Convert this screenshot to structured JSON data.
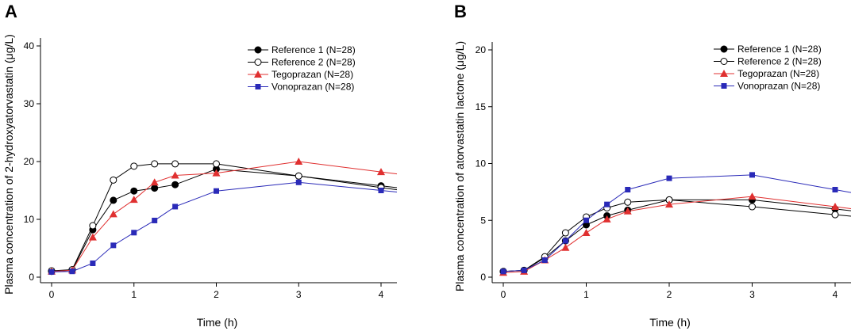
{
  "chart_data": [
    {
      "panel": "A",
      "type": "line",
      "ylabel": "Plasma concentration of 2-hydroxyatorvastatin (μg/L)",
      "xlabel": "Time (h)",
      "xlim": [
        0,
        4
      ],
      "ylim": [
        0,
        40
      ],
      "xticks": [
        0,
        1,
        2,
        3,
        4
      ],
      "yticks": [
        0,
        10,
        20,
        30,
        40
      ],
      "legend_position": "top-right",
      "x": [
        0,
        0.25,
        0.5,
        0.75,
        1,
        1.25,
        1.5,
        2,
        3,
        4
      ],
      "series": [
        {
          "name": "Reference 1 (N=28)",
          "color": "#000000",
          "marker": "filled-circle",
          "values": [
            1.0,
            1.2,
            8.2,
            13.3,
            14.9,
            15.4,
            16.0,
            18.7,
            17.5,
            15.8
          ]
        },
        {
          "name": "Reference 2 (N=28)",
          "color": "#000000",
          "marker": "open-circle",
          "values": [
            1.1,
            1.3,
            8.9,
            16.8,
            19.2,
            19.6,
            19.6,
            19.6,
            17.5,
            15.5
          ]
        },
        {
          "name": "Tegoprazan (N=28)",
          "color": "#e03030",
          "marker": "triangle",
          "values": [
            1.0,
            1.2,
            6.9,
            10.9,
            13.4,
            16.4,
            17.6,
            18.0,
            20.0,
            18.2
          ]
        },
        {
          "name": "Vonoprazan (N=28)",
          "color": "#2a2ab8",
          "marker": "square",
          "values": [
            0.9,
            1.0,
            2.4,
            5.5,
            7.7,
            9.8,
            12.2,
            14.9,
            16.4,
            15.0
          ]
        }
      ]
    },
    {
      "panel": "B",
      "type": "line",
      "ylabel": "Plasma concentration of atorvastatin lactone (μg/L)",
      "xlabel": "Time (h)",
      "xlim": [
        0,
        4
      ],
      "ylim": [
        0,
        20
      ],
      "xticks": [
        0,
        1,
        2,
        3,
        4
      ],
      "yticks": [
        0,
        5,
        10,
        15,
        20
      ],
      "legend_position": "top-right",
      "x": [
        0,
        0.25,
        0.5,
        0.75,
        1,
        1.25,
        1.5,
        2,
        3,
        4
      ],
      "series": [
        {
          "name": "Reference 1 (N=28)",
          "color": "#000000",
          "marker": "filled-circle",
          "values": [
            0.5,
            0.6,
            1.7,
            3.2,
            4.6,
            5.4,
            5.9,
            6.8,
            6.8,
            6.0
          ]
        },
        {
          "name": "Reference 2 (N=28)",
          "color": "#000000",
          "marker": "open-circle",
          "values": [
            0.5,
            0.6,
            1.8,
            3.9,
            5.3,
            6.1,
            6.6,
            6.8,
            6.2,
            5.5
          ]
        },
        {
          "name": "Tegoprazan (N=28)",
          "color": "#e03030",
          "marker": "triangle",
          "values": [
            0.4,
            0.5,
            1.5,
            2.6,
            3.9,
            5.1,
            5.8,
            6.4,
            7.1,
            6.2
          ]
        },
        {
          "name": "Vonoprazan (N=28)",
          "color": "#2a2ab8",
          "marker": "square",
          "values": [
            0.5,
            0.6,
            1.5,
            3.2,
            5.0,
            6.4,
            7.7,
            8.7,
            9.0,
            7.7
          ]
        }
      ]
    }
  ]
}
